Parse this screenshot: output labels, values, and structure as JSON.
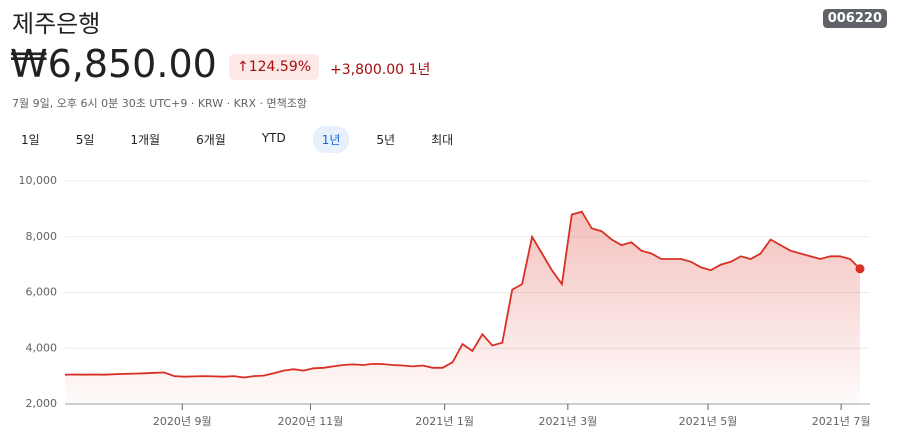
{
  "header": {
    "name": "제주은행",
    "ticker": "006220",
    "price": "₩6,850.00",
    "change_percent": "124.59%",
    "change_value": "+3,800.00",
    "change_period": "1년",
    "meta": "7월 9일, 오후 6시 0분 30초 UTC+9 · KRW · KRX · 면책조항"
  },
  "tabs": [
    "1일",
    "5일",
    "1개월",
    "6개월",
    "YTD",
    "1년",
    "5년",
    "최대"
  ],
  "selected_tab": 5,
  "chart_data": {
    "type": "line",
    "color": "#d93025",
    "grid": true,
    "values": [
      3050,
      3060,
      3050,
      3060,
      3050,
      3070,
      3080,
      3090,
      3100,
      3120,
      3130,
      3000,
      2980,
      2990,
      3000,
      2990,
      2980,
      3000,
      2950,
      3000,
      3020,
      3100,
      3200,
      3250,
      3200,
      3280,
      3300,
      3350,
      3400,
      3420,
      3400,
      3440,
      3430,
      3400,
      3380,
      3350,
      3380,
      3300,
      3300,
      3500,
      4150,
      3900,
      4500,
      4100,
      4200,
      6100,
      6300,
      8000,
      7400,
      6800,
      6300,
      8800,
      8900,
      8300,
      8200,
      7900,
      7700,
      7800,
      7500,
      7400,
      7200,
      7200,
      7200,
      7100,
      6900,
      6800,
      7000,
      7100,
      7300,
      7200,
      7400,
      7900,
      7700,
      7500,
      7400,
      7300,
      7200,
      7300,
      7300,
      7200,
      6850
    ],
    "xlim": [
      0,
      80
    ],
    "xticks": [
      {
        "value": 11.8,
        "label": "2020년 9월"
      },
      {
        "value": 24.7,
        "label": "2020년 11월"
      },
      {
        "value": 38.2,
        "label": "2021년 1월"
      },
      {
        "value": 50.6,
        "label": "2021년 3월"
      },
      {
        "value": 64.7,
        "label": "2021년 5월"
      },
      {
        "value": 78.1,
        "label": "2021년 7월"
      }
    ],
    "ylim": [
      2000,
      10000
    ],
    "yticks": [
      {
        "value": 2000,
        "label": "2,000"
      },
      {
        "value": 4000,
        "label": "4,000"
      },
      {
        "value": 6000,
        "label": "6,000"
      },
      {
        "value": 8000,
        "label": "8,000"
      },
      {
        "value": 10000,
        "label": "10,000"
      }
    ]
  }
}
